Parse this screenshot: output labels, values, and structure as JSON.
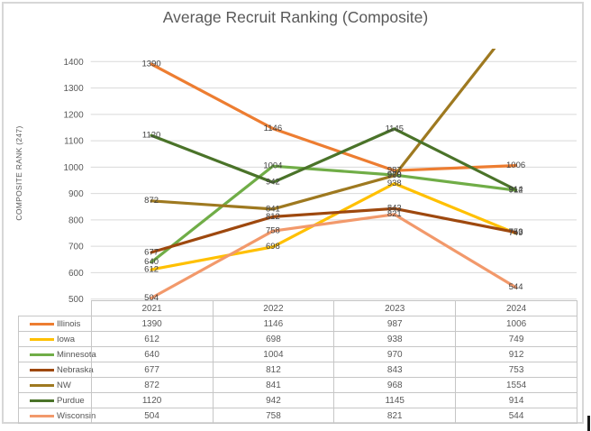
{
  "chart_data": {
    "type": "line",
    "title": "Average Recruit Ranking (Composite)",
    "ylabel": "COMPOSITE RANK (247)",
    "xlabel": "",
    "categories": [
      "2021",
      "2022",
      "2023",
      "2024"
    ],
    "series": [
      {
        "name": "Illinois",
        "color": "#ED7D31",
        "values": [
          1390,
          1146,
          987,
          1006
        ]
      },
      {
        "name": "Iowa",
        "color": "#FFC000",
        "values": [
          612,
          698,
          938,
          749
        ]
      },
      {
        "name": "Minnesota",
        "color": "#70AD47",
        "values": [
          640,
          1004,
          970,
          912
        ]
      },
      {
        "name": "Nebraska",
        "color": "#9E480E",
        "values": [
          677,
          812,
          843,
          753
        ]
      },
      {
        "name": "NW",
        "color": "#9E7920",
        "values": [
          872,
          841,
          968,
          1554
        ]
      },
      {
        "name": "Purdue",
        "color": "#4A7329",
        "values": [
          1120,
          942,
          1145,
          914
        ]
      },
      {
        "name": "Wisconsin",
        "color": "#F2996B",
        "values": [
          504,
          758,
          821,
          544
        ]
      }
    ],
    "ylim": [
      500,
      1400
    ],
    "yticks": [
      500,
      600,
      700,
      800,
      900,
      1000,
      1100,
      1200,
      1300,
      1400
    ],
    "grid": true,
    "data_labels": true,
    "legend_position": "data-table-left",
    "data_table": true
  },
  "colors": {
    "title_text": "#595959",
    "axis_text": "#595959",
    "data_label_text": "#404040",
    "gridline": "#D9D9D9",
    "table_border": "#C6C6C6",
    "frame_border": "#D7D7D7",
    "background": "#FFFFFF"
  }
}
